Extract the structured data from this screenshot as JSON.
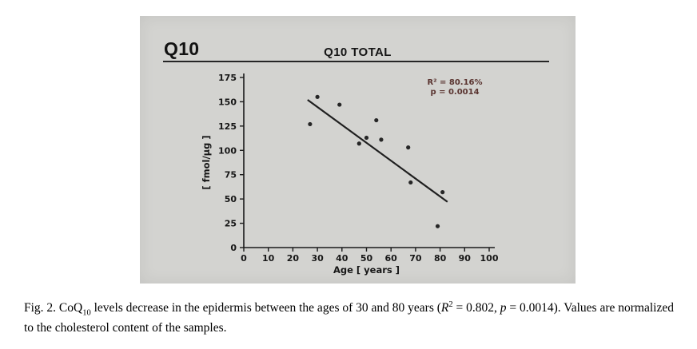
{
  "figure": {
    "panel_title_left": "Q10"
  },
  "chart_data": {
    "type": "scatter",
    "title": "Q10 TOTAL",
    "xlabel": "Age [ years ]",
    "ylabel": "[ fmol/µg ]",
    "xlim": [
      0,
      100
    ],
    "ylim": [
      0,
      175
    ],
    "xticks": [
      0,
      10,
      20,
      30,
      40,
      50,
      60,
      70,
      80,
      90,
      100
    ],
    "yticks": [
      0,
      25,
      50,
      75,
      100,
      125,
      150,
      175
    ],
    "grid": false,
    "legend": null,
    "annotations": [
      "R² = 80.16%",
      "p = 0.0014"
    ],
    "annotation_color": "#5a3430",
    "point_color": "#262626",
    "line_color": "#1f1f1f",
    "axis_color": "#1a1a1a",
    "points": [
      [
        27,
        127
      ],
      [
        30,
        155
      ],
      [
        39,
        147
      ],
      [
        47,
        107
      ],
      [
        50,
        113
      ],
      [
        54,
        131
      ],
      [
        56,
        111
      ],
      [
        67,
        103
      ],
      [
        68,
        67
      ],
      [
        79,
        22
      ],
      [
        81,
        57
      ]
    ],
    "trendline": {
      "x": [
        26,
        83
      ],
      "y": [
        152,
        47
      ]
    }
  },
  "caption": {
    "segments": [
      {
        "t": "Fig. 2. CoQ",
        "s": "n"
      },
      {
        "t": "10",
        "s": "sub"
      },
      {
        "t": " levels decrease in the epidermis between the ages of 30 and 80 years (",
        "s": "n"
      },
      {
        "t": "R",
        "s": "i"
      },
      {
        "t": "2",
        "s": "sup"
      },
      {
        "t": " = 0.802, ",
        "s": "n"
      },
      {
        "t": "p",
        "s": "i"
      },
      {
        "t": " = 0.0014). Values are normalized to the cholesterol content of the samples.",
        "s": "n"
      }
    ]
  }
}
